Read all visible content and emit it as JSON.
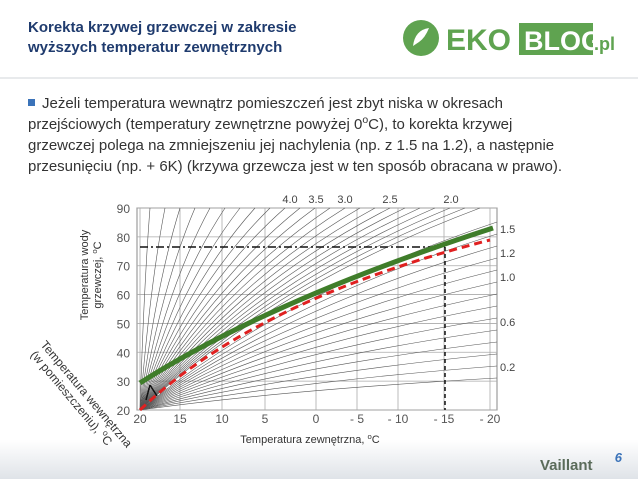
{
  "header": {
    "title_lines": [
      "Korekta krzywej grzewczej w zakresie",
      "wyższych temperatur zewnętrznych"
    ],
    "logo": [
      "EKO",
      "BLOG",
      ".pl"
    ]
  },
  "bullet": {
    "lines": [
      [
        "Jeżeli temperatura wewnątrz pomieszczeń jest zbyt niska w okresach"
      ],
      [
        "przejściowych (temperatury zewnętrzne powyżej 0",
        "o",
        "C), to korekta krzywej"
      ],
      [
        "grzewczej polega na zmniejszeniu jej nachylenia (np. z 1.5 na 1.2), a następnie"
      ],
      [
        "przesunięciu (np. + 6K) (krzywa grzewcza jest w ten sposób obracana w prawo)."
      ]
    ]
  },
  "diagram": {
    "y_ticks": [
      "90",
      "80",
      "70",
      "60",
      "50",
      "40",
      "30",
      "20"
    ],
    "x_ticks": [
      "20",
      "15",
      "10",
      "5",
      "0",
      "- 5",
      "- 10",
      "- 15",
      "- 20"
    ],
    "top_curve_labels": [
      "4.0",
      "3.5",
      "3.0",
      "2.5",
      "2.0"
    ],
    "right_curve_labels": [
      "1.5",
      "1.2",
      "1.0",
      "0.6",
      "0.2"
    ],
    "y_label": [
      [
        "Temperatura wody"
      ],
      [
        "grzewczej, ",
        "o",
        "C"
      ]
    ],
    "diag_label": [
      [
        "Temperatura wewnętrzna"
      ],
      [
        "(w pomieszczeniu), ",
        "o",
        "C"
      ]
    ],
    "x_label": [
      "Temperatura zewnętrzna, ",
      "o",
      "C"
    ]
  },
  "footer": {
    "page": "6",
    "brand": "Vaillant"
  }
}
